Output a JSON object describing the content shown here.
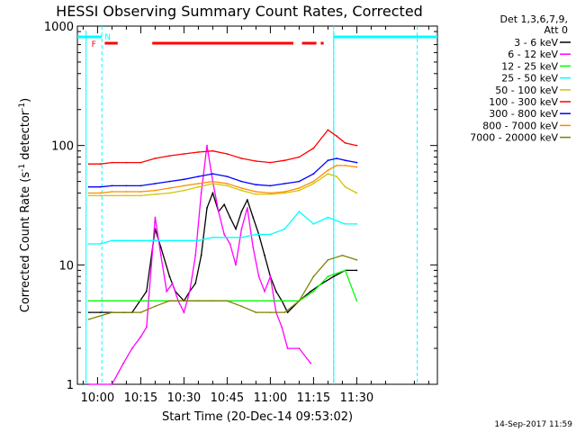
{
  "chart_data": {
    "type": "line",
    "title": "HESSI Observing Summary Count Rates, Corrected",
    "xlabel": "Start Time (20-Dec-14 09:53:02)",
    "ylabel": "Corrected Count Rate (s",
    "ylabel_sup1": "-1",
    "ylabel_mid": " detector",
    "ylabel_sup2": "-1",
    "ylabel_end": ")",
    "y_scale": "log",
    "ylim": [
      1,
      1000
    ],
    "xlim_minutes_after_start": [
      -7,
      118
    ],
    "y_ticks": [
      {
        "value": 1,
        "label": "1"
      },
      {
        "value": 10,
        "label": "10"
      },
      {
        "value": 100,
        "label": "100"
      },
      {
        "value": 1000,
        "label": "1000"
      }
    ],
    "x_ticks": [
      {
        "t": 0,
        "label": "10:00"
      },
      {
        "t": 15,
        "label": "10:15"
      },
      {
        "t": 30,
        "label": "10:30"
      },
      {
        "t": 45,
        "label": "10:45"
      },
      {
        "t": 60,
        "label": "11:00"
      },
      {
        "t": 75,
        "label": "11:15"
      },
      {
        "t": 90,
        "label": "11:30"
      }
    ],
    "legend": {
      "header_line1": "Det 1,3,6,7,9,",
      "header_line2": "Att 0",
      "position": "right"
    },
    "series": [
      {
        "name": "3 - 6 keV",
        "color": "#000000",
        "x": [
          -3,
          1,
          5,
          9,
          12,
          17,
          20,
          22,
          25,
          27,
          30,
          32,
          34,
          36,
          38,
          40,
          42,
          44,
          46,
          48,
          50,
          52,
          54,
          56,
          58,
          60,
          62,
          64,
          66,
          70,
          74,
          78,
          82,
          86,
          90
        ],
        "y": [
          4,
          4,
          4,
          4,
          4,
          6,
          20,
          14,
          8,
          6,
          5,
          6,
          7,
          12,
          30,
          40,
          28,
          32,
          25,
          20,
          28,
          35,
          25,
          18,
          12,
          8,
          6,
          5,
          4,
          5,
          6,
          7,
          8,
          9,
          9
        ]
      },
      {
        "name": "6 - 12 keV",
        "color": "#ff00ff",
        "x": [
          -3,
          5,
          9,
          12,
          15,
          17,
          20,
          22,
          24,
          26,
          28,
          30,
          32,
          34,
          36,
          38,
          40,
          42,
          44,
          46,
          48,
          50,
          52,
          54,
          56,
          58,
          60,
          62,
          64,
          66,
          70,
          74
        ],
        "y": [
          1,
          1,
          1.5,
          2,
          2.5,
          3,
          25,
          12,
          6,
          7,
          5,
          4,
          6,
          12,
          40,
          100,
          50,
          28,
          18,
          15,
          10,
          20,
          30,
          14,
          8,
          6,
          8,
          4,
          3,
          2,
          2,
          1.5
        ]
      },
      {
        "name": "12 - 25 keV",
        "color": "#00ff00",
        "x": [
          -3,
          5,
          15,
          25,
          35,
          45,
          55,
          60,
          65,
          70,
          75,
          80,
          86,
          90
        ],
        "y": [
          5,
          5,
          5,
          5,
          5,
          5,
          5,
          5,
          5,
          5,
          6,
          8,
          9,
          5
        ]
      },
      {
        "name": "25 - 50 keV",
        "color": "#00ffff",
        "x": [
          -3,
          1,
          5,
          10,
          15,
          20,
          25,
          30,
          35,
          40,
          45,
          50,
          55,
          60,
          65,
          70,
          75,
          80,
          86,
          90
        ],
        "y": [
          15,
          15,
          16,
          16,
          16,
          16,
          16,
          16,
          16,
          17,
          17,
          17,
          18,
          18,
          20,
          28,
          22,
          25,
          22,
          22
        ]
      },
      {
        "name": "50 - 100 keV",
        "color": "#d4c400",
        "x": [
          -3,
          1,
          5,
          10,
          15,
          20,
          25,
          30,
          35,
          40,
          45,
          50,
          55,
          60,
          65,
          70,
          75,
          80,
          83,
          86,
          90
        ],
        "y": [
          38,
          38,
          38,
          38,
          38,
          39,
          40,
          42,
          45,
          48,
          46,
          42,
          39,
          39,
          40,
          42,
          48,
          58,
          55,
          45,
          40
        ]
      },
      {
        "name": "100 - 300 keV",
        "color": "#ff0000",
        "x": [
          -3,
          1,
          5,
          10,
          15,
          20,
          25,
          30,
          35,
          40,
          45,
          50,
          55,
          60,
          65,
          70,
          75,
          80,
          83,
          86,
          90
        ],
        "y": [
          70,
          70,
          72,
          72,
          72,
          78,
          82,
          85,
          88,
          90,
          85,
          78,
          74,
          72,
          75,
          80,
          95,
          135,
          120,
          105,
          100
        ]
      },
      {
        "name": "300 - 800 keV",
        "color": "#0000ff",
        "x": [
          -3,
          1,
          5,
          10,
          15,
          20,
          25,
          30,
          35,
          40,
          45,
          50,
          55,
          60,
          65,
          70,
          75,
          80,
          83,
          86,
          90
        ],
        "y": [
          45,
          45,
          46,
          46,
          46,
          48,
          50,
          52,
          55,
          58,
          55,
          50,
          47,
          46,
          48,
          50,
          58,
          75,
          78,
          75,
          72
        ]
      },
      {
        "name": "800 - 7000 keV",
        "color": "#ff8c00",
        "x": [
          -3,
          1,
          5,
          10,
          15,
          20,
          25,
          30,
          35,
          40,
          45,
          50,
          55,
          60,
          65,
          70,
          75,
          80,
          83,
          86,
          90
        ],
        "y": [
          40,
          40,
          41,
          41,
          41,
          42,
          44,
          46,
          48,
          50,
          48,
          44,
          41,
          40,
          41,
          44,
          50,
          62,
          68,
          68,
          66
        ]
      },
      {
        "name": "7000 - 20000 keV",
        "color": "#808000",
        "x": [
          -3,
          5,
          10,
          15,
          20,
          25,
          30,
          35,
          40,
          45,
          50,
          55,
          60,
          65,
          70,
          75,
          80,
          85,
          90
        ],
        "y": [
          3.5,
          4,
          4,
          4,
          4.5,
          5,
          5,
          5,
          5,
          5,
          4.5,
          4,
          4,
          4,
          5,
          8,
          11,
          12,
          11
        ]
      }
    ],
    "annotations": {
      "flag_F": "F",
      "flag_N": "N",
      "flare_flag_color": "#ff0000",
      "night_flag_color": "#00ffff"
    }
  },
  "footer_timestamp": "14-Sep-2017 11:59"
}
